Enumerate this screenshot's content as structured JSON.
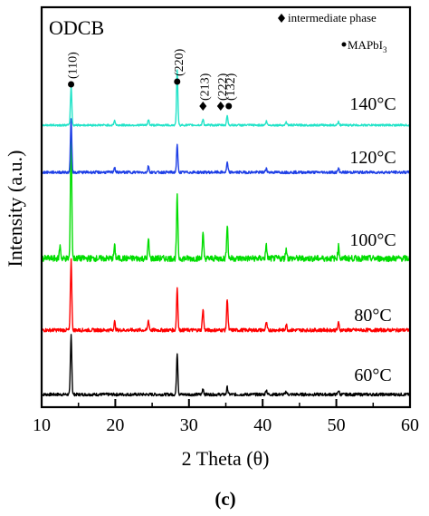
{
  "chart_data": {
    "type": "line",
    "panel_label": "ODCB",
    "caption": "(c)",
    "xlabel": "2 Theta (θ)",
    "ylabel": "Intensity (a.u.)",
    "xlim": [
      10,
      60
    ],
    "x_ticks": [
      10,
      20,
      30,
      40,
      50,
      60
    ],
    "legend": {
      "intermediate_label": "intermediate phase",
      "mapbi_label": "MAPbI",
      "mapbi_subscript": "3",
      "placement": "top-right"
    },
    "peak_annotations": [
      {
        "label": "(110)",
        "x": 14.0,
        "marker": "circle"
      },
      {
        "label": "(220)",
        "x": 28.4,
        "marker": "circle"
      },
      {
        "label": "(213)",
        "x": 31.9,
        "marker": "diamond"
      },
      {
        "label": "(222)",
        "x": 34.3,
        "marker": "diamond"
      },
      {
        "label": "(132)",
        "x": 35.4,
        "marker": "circle"
      }
    ],
    "series": [
      {
        "name": "60°C",
        "color": "#000000",
        "peaks": [
          [
            14.0,
            1.0
          ],
          [
            28.4,
            0.7
          ],
          [
            31.9,
            0.1
          ],
          [
            35.2,
            0.12
          ],
          [
            40.5,
            0.08
          ],
          [
            43.2,
            0.05
          ],
          [
            50.3,
            0.07
          ]
        ]
      },
      {
        "name": "80°C",
        "color": "#ff0000",
        "peaks": [
          [
            14.0,
            1.0
          ],
          [
            19.9,
            0.12
          ],
          [
            24.5,
            0.14
          ],
          [
            28.4,
            0.6
          ],
          [
            31.9,
            0.3
          ],
          [
            35.2,
            0.45
          ],
          [
            40.5,
            0.1
          ],
          [
            43.2,
            0.08
          ],
          [
            50.3,
            0.1
          ]
        ]
      },
      {
        "name": "100°C",
        "color": "#00dd00",
        "peaks": [
          [
            12.5,
            0.1
          ],
          [
            14.0,
            1.0
          ],
          [
            19.9,
            0.1
          ],
          [
            24.5,
            0.15
          ],
          [
            28.4,
            0.5
          ],
          [
            31.9,
            0.2
          ],
          [
            35.2,
            0.28
          ],
          [
            40.5,
            0.1
          ],
          [
            43.2,
            0.08
          ],
          [
            50.3,
            0.1
          ]
        ]
      },
      {
        "name": "120°C",
        "color": "#1e3fe6",
        "peaks": [
          [
            14.0,
            1.0
          ],
          [
            19.9,
            0.1
          ],
          [
            24.5,
            0.12
          ],
          [
            28.4,
            0.5
          ],
          [
            35.2,
            0.18
          ],
          [
            40.5,
            0.08
          ],
          [
            50.3,
            0.07
          ]
        ]
      },
      {
        "name": "140°C",
        "color": "#22e3c8",
        "peaks": [
          [
            14.0,
            1.0
          ],
          [
            19.9,
            0.12
          ],
          [
            24.5,
            0.15
          ],
          [
            28.4,
            1.4
          ],
          [
            31.9,
            0.15
          ],
          [
            35.2,
            0.25
          ],
          [
            40.5,
            0.1
          ],
          [
            43.2,
            0.08
          ],
          [
            50.3,
            0.1
          ]
        ]
      }
    ]
  }
}
